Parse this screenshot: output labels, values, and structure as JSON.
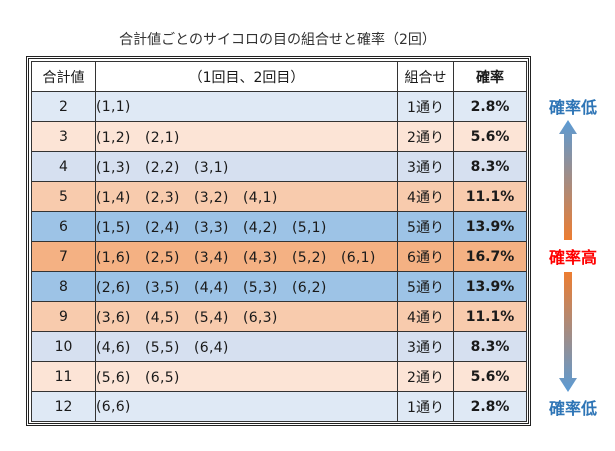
{
  "title": "合計値ごとのサイコロの目の組合せと確率（2回）",
  "headers": {
    "sum": "合計値",
    "pairs": "（1回目、2回目）",
    "count": "組合せ",
    "rate": "確率"
  },
  "rows": [
    {
      "sum": "2",
      "pairs": "(1,1)",
      "count": "1通り",
      "rate": "2.8%",
      "bg": "#dfe9f5"
    },
    {
      "sum": "3",
      "pairs": "(1,2)　(2,1)",
      "count": "2通り",
      "rate": "5.6%",
      "bg": "#fce4d6"
    },
    {
      "sum": "4",
      "pairs": "(1,3)　(2,2)　(3,1)",
      "count": "3通り",
      "rate": "8.3%",
      "bg": "#d6e0f0"
    },
    {
      "sum": "5",
      "pairs": "(1,4)　(2,3)　(3,2)　(4,1)",
      "count": "4通り",
      "rate": "11.1%",
      "bg": "#f8cbad"
    },
    {
      "sum": "6",
      "pairs": "(1,5)　(2,4)　(3,3)　(4,2)　(5,1)",
      "count": "5通り",
      "rate": "13.9%",
      "bg": "#9dc3e6"
    },
    {
      "sum": "7",
      "pairs": "(1,6)　(2,5)　(3,4)　(4,3)　(5,2)　(6,1)",
      "count": "6通り",
      "rate": "16.7%",
      "bg": "#f4b183"
    },
    {
      "sum": "8",
      "pairs": "(2,6)　(3,5)　(4,4)　(5,3)　(6,2)",
      "count": "5通り",
      "rate": "13.9%",
      "bg": "#9dc3e6"
    },
    {
      "sum": "9",
      "pairs": "(3,6)　(4,5)　(5,4)　(6,3)",
      "count": "4通り",
      "rate": "11.1%",
      "bg": "#f8cbad"
    },
    {
      "sum": "10",
      "pairs": "(4,6)　(5,5)　(6,4)",
      "count": "3通り",
      "rate": "8.3%",
      "bg": "#d6e0f0"
    },
    {
      "sum": "11",
      "pairs": "(5,6)　(6,5)",
      "count": "2通り",
      "rate": "5.6%",
      "bg": "#fce4d6"
    },
    {
      "sum": "12",
      "pairs": "(6,6)",
      "count": "1通り",
      "rate": "2.8%",
      "bg": "#dfe9f5"
    }
  ],
  "side_labels": {
    "top": "確率低",
    "middle": "確率高",
    "bottom": "確率低"
  },
  "colors": {
    "low_label": "#2e75b6",
    "high_label": "#ff0000",
    "arrow_blue": "#5b9bd5",
    "arrow_orange": "#ed7d31"
  }
}
